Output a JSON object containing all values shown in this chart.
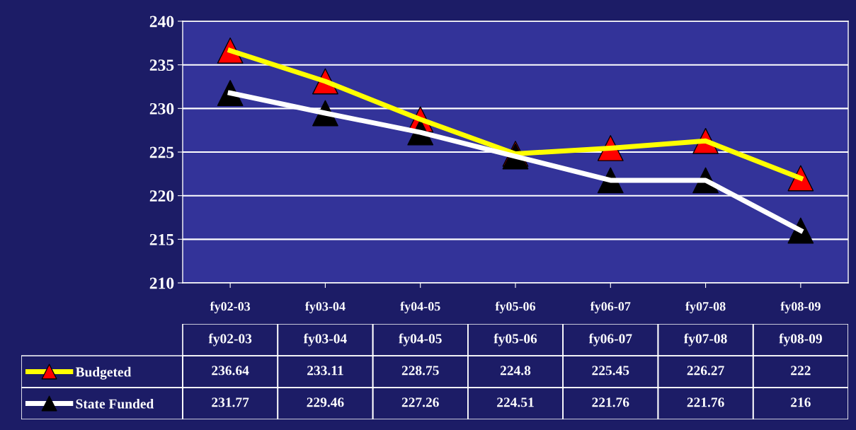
{
  "chart_data": {
    "type": "line",
    "categories": [
      "fy02-03",
      "fy03-04",
      "fy04-05",
      "fy05-06",
      "fy06-07",
      "fy07-08",
      "fy08-09"
    ],
    "series": [
      {
        "name": "Budgeted",
        "color": "#ffff00",
        "colors": [
          "#ff0000",
          "#ff0000",
          "#ff0000",
          "#ff0000",
          "#ff0000",
          "#ff0000",
          "#ff0000"
        ],
        "values": [
          236.64,
          233.11,
          228.75,
          224.8,
          225.45,
          226.27,
          222
        ]
      },
      {
        "name": "State Funded",
        "color": "#ffffff",
        "colors": [
          "#000000",
          "#000000",
          "#000000",
          "#000000",
          "#000000",
          "#000000",
          "#000000"
        ],
        "values": [
          231.77,
          229.46,
          227.26,
          224.51,
          221.76,
          221.76,
          216
        ]
      }
    ],
    "ylim": [
      210,
      240
    ],
    "yticks": [
      210,
      215,
      220,
      225,
      230,
      235,
      240
    ],
    "grid": "y",
    "marker": "triangle",
    "line_style": "solid",
    "legend": "bottom",
    "data_labels": true
  }
}
